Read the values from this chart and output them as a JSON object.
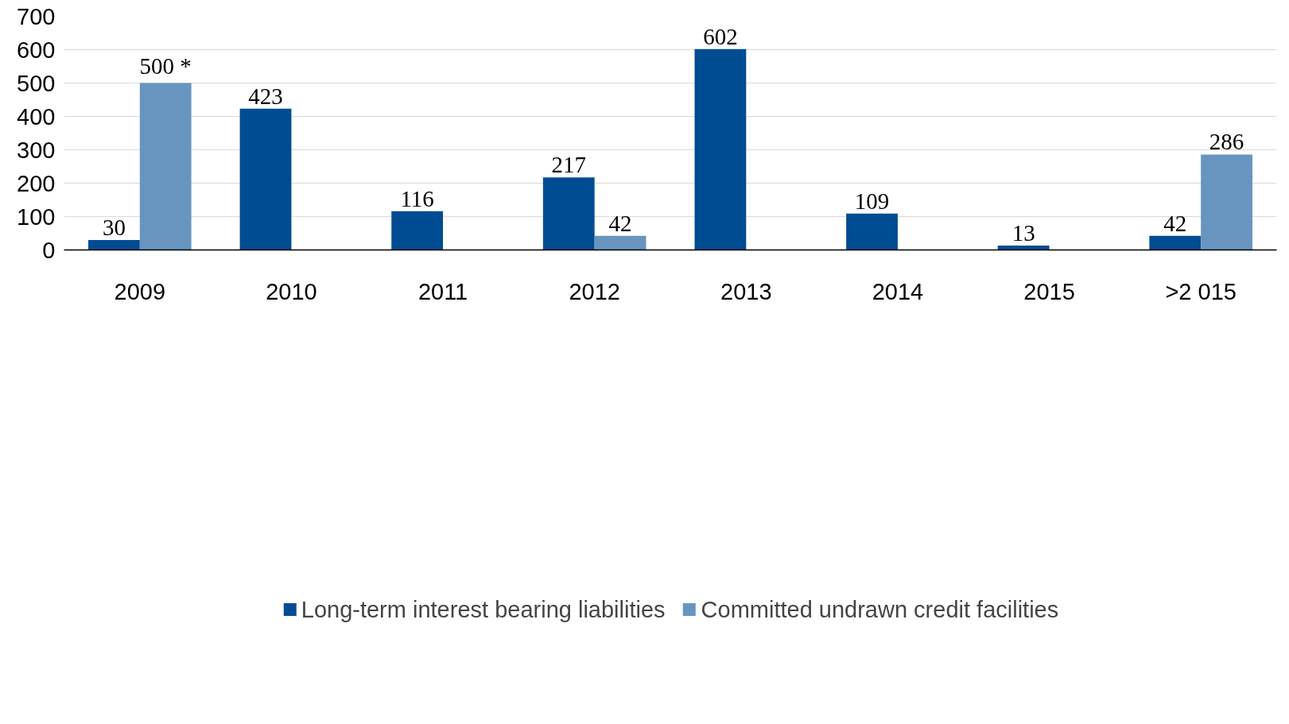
{
  "chart_data": {
    "type": "bar",
    "categories": [
      "2009",
      "2010",
      "2011",
      "2012",
      "2013",
      "2014",
      "2015",
      ">2 015"
    ],
    "series": [
      {
        "name": "Long-term interest bearing liabilities",
        "color": "#004c92",
        "values": [
          30,
          423,
          116,
          217,
          602,
          109,
          13,
          42
        ],
        "value_labels": [
          "30",
          "423",
          "116",
          "217",
          "602",
          "109",
          "13",
          "42"
        ]
      },
      {
        "name": "Committed undrawn credit facilities",
        "color": "#6795c0",
        "values": [
          500,
          null,
          null,
          42,
          null,
          null,
          null,
          286
        ],
        "value_labels": [
          "500 *",
          null,
          null,
          "42",
          null,
          null,
          null,
          "286"
        ]
      }
    ],
    "ylim": [
      0,
      700
    ],
    "yticks": [
      0,
      100,
      200,
      300,
      400,
      500,
      600,
      700
    ],
    "grid": "y",
    "legend": "bottom"
  }
}
